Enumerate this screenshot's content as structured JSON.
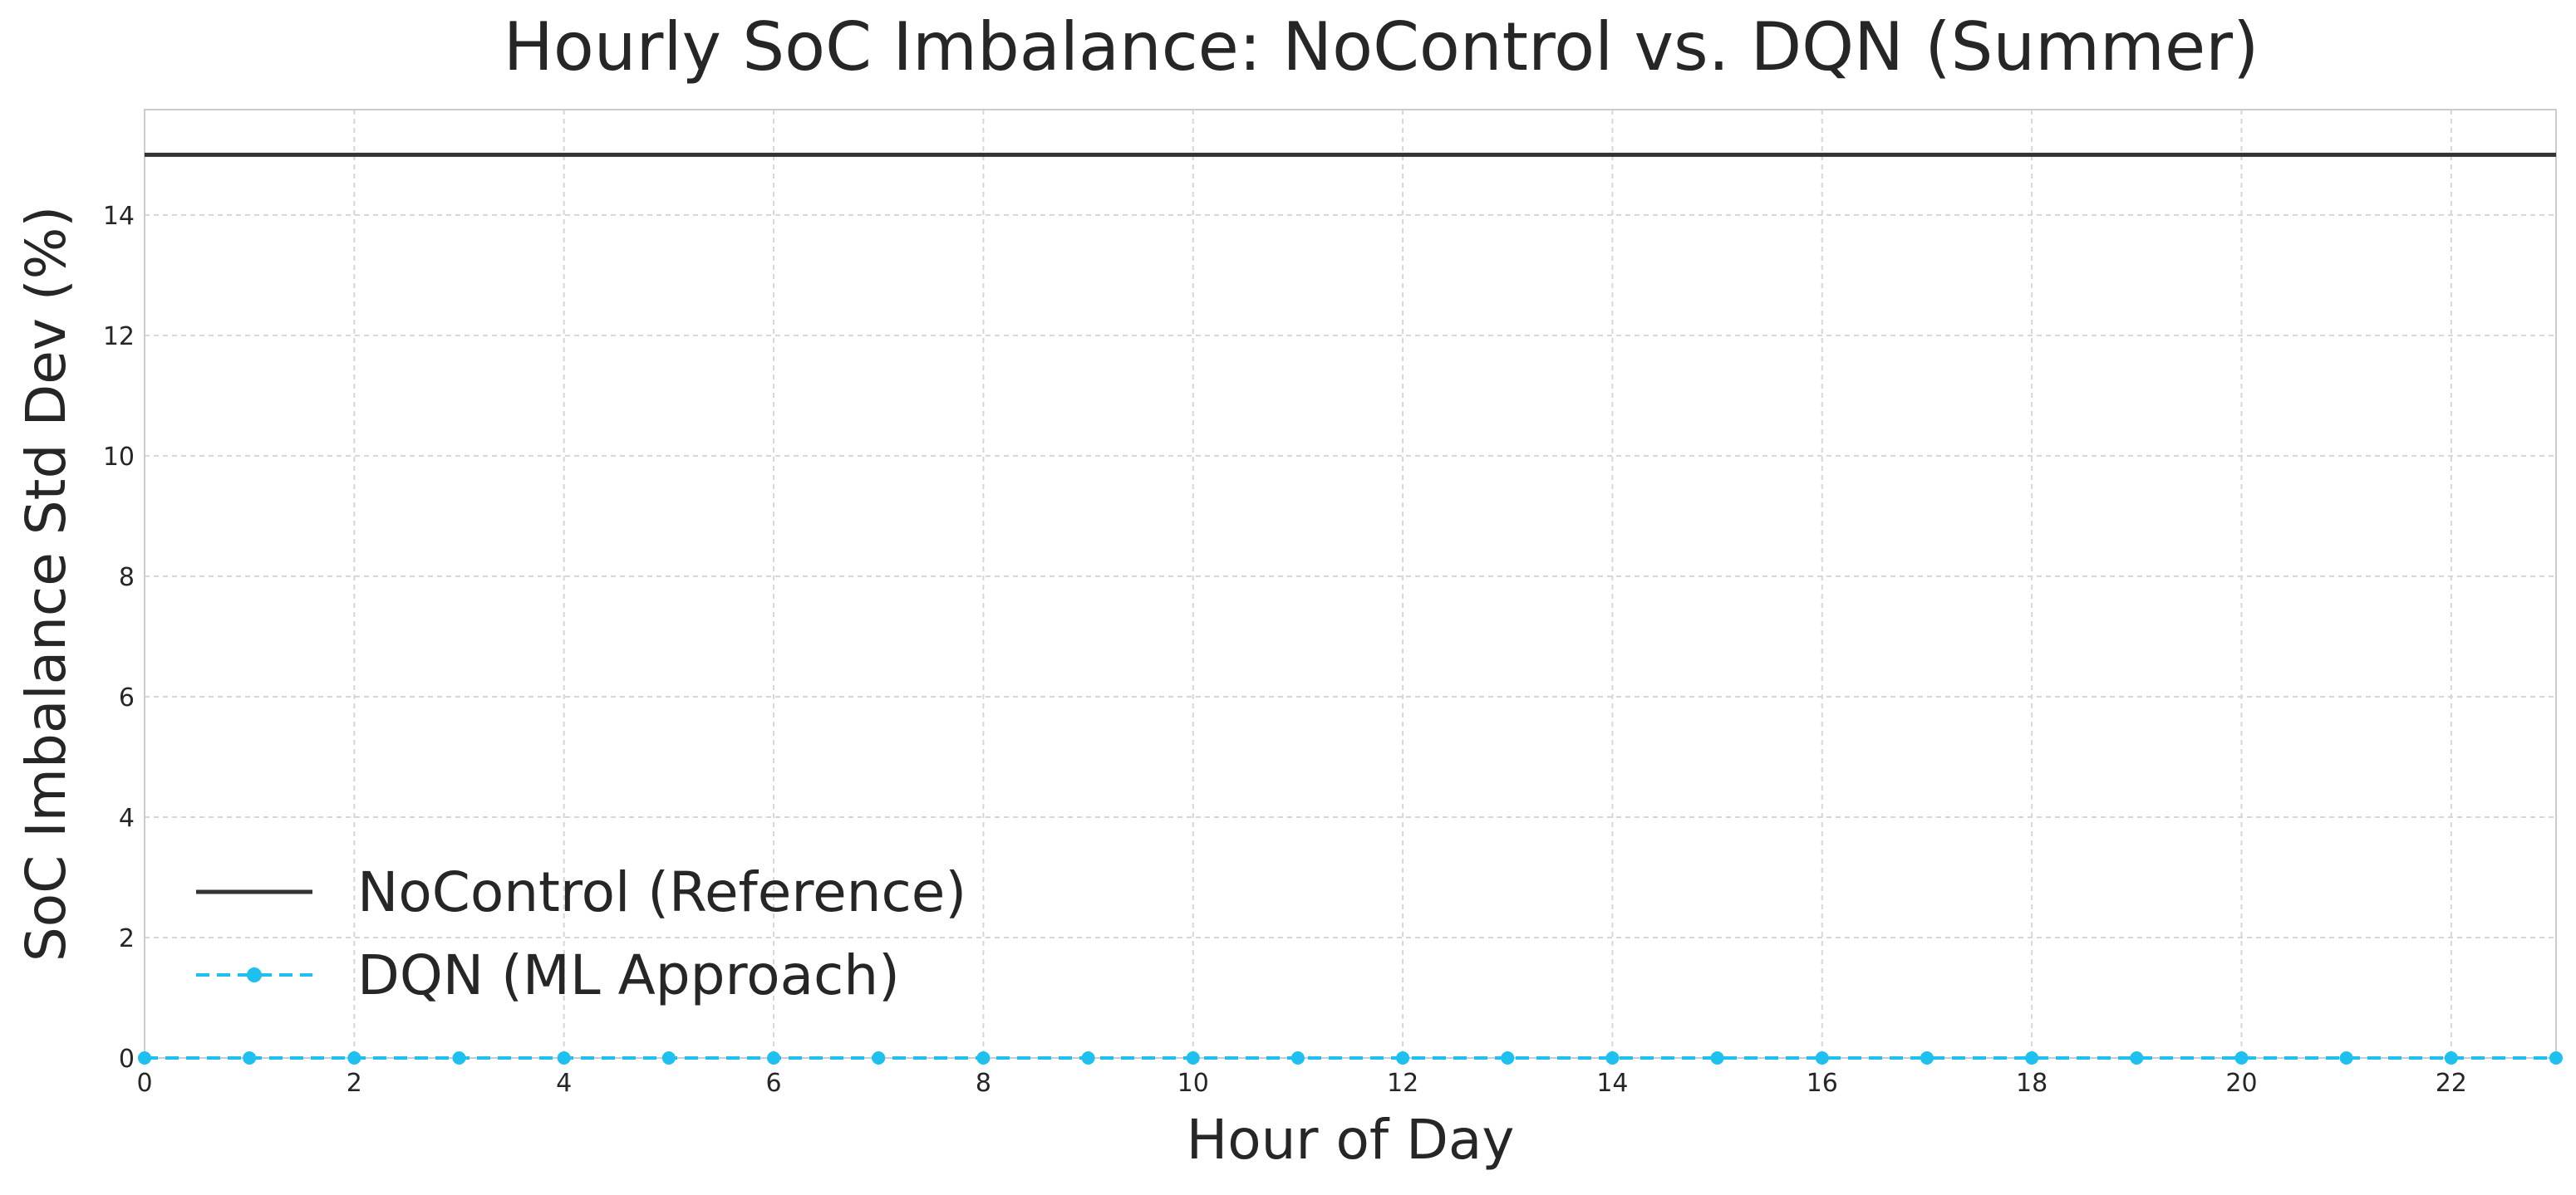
{
  "chart_data": {
    "type": "line",
    "title": "Hourly SoC Imbalance: NoControl vs. DQN (Summer)",
    "xlabel": "Hour of Day",
    "ylabel": "SoC Imbalance Std Dev (%)",
    "xlim": [
      0,
      23
    ],
    "ylim": [
      0,
      15.75
    ],
    "x_ticks": [
      0,
      2,
      4,
      6,
      8,
      10,
      12,
      14,
      16,
      18,
      20,
      22
    ],
    "y_ticks": [
      0,
      2,
      4,
      6,
      8,
      10,
      12,
      14
    ],
    "grid": true,
    "legend_position": "lower-left",
    "x": [
      0,
      1,
      2,
      3,
      4,
      5,
      6,
      7,
      8,
      9,
      10,
      11,
      12,
      13,
      14,
      15,
      16,
      17,
      18,
      19,
      20,
      21,
      22,
      23
    ],
    "series": [
      {
        "name": "NoControl (Reference)",
        "color": "#333333",
        "line_style": "solid",
        "marker": "none",
        "values": [
          15,
          15,
          15,
          15,
          15,
          15,
          15,
          15,
          15,
          15,
          15,
          15,
          15,
          15,
          15,
          15,
          15,
          15,
          15,
          15,
          15,
          15,
          15,
          15
        ]
      },
      {
        "name": "DQN (ML Approach)",
        "color": "#1ec0f0",
        "line_style": "dashed",
        "marker": "circle",
        "values": [
          0,
          0,
          0,
          0,
          0,
          0,
          0,
          0,
          0,
          0,
          0,
          0,
          0,
          0,
          0,
          0,
          0,
          0,
          0,
          0,
          0,
          0,
          0,
          0
        ]
      }
    ]
  }
}
